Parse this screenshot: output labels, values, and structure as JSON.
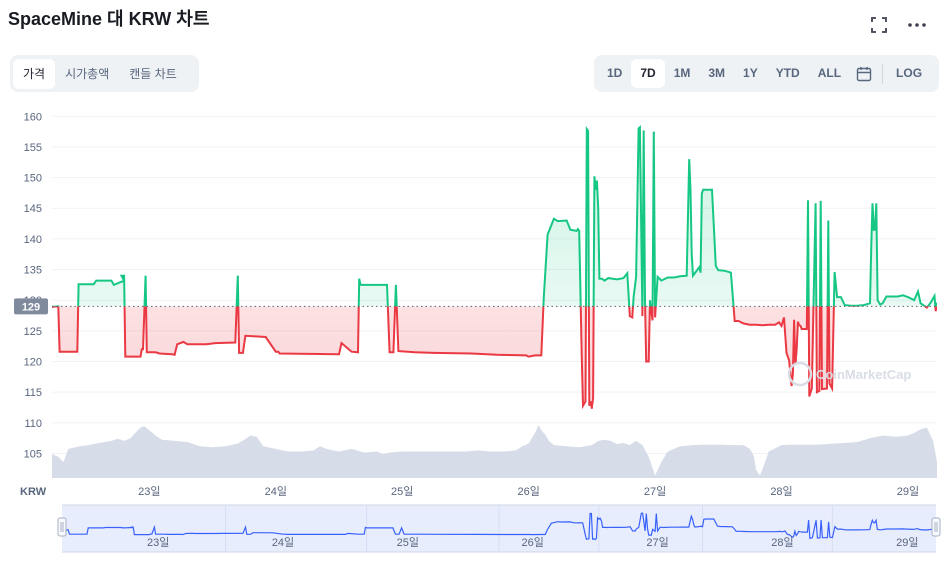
{
  "title": "SpaceMine 대 KRW 차트",
  "tabs": [
    {
      "label": "가격",
      "active": true
    },
    {
      "label": "시가총액",
      "active": false
    },
    {
      "label": "캔들 차트",
      "active": false
    }
  ],
  "ranges": [
    {
      "label": "1D",
      "active": false
    },
    {
      "label": "7D",
      "active": true
    },
    {
      "label": "1M",
      "active": false
    },
    {
      "label": "3M",
      "active": false
    },
    {
      "label": "1Y",
      "active": false
    },
    {
      "label": "YTD",
      "active": false
    },
    {
      "label": "ALL",
      "active": false
    }
  ],
  "log_label": "LOG",
  "icons": {
    "fullscreen": "fullscreen-icon",
    "more": "more-icon",
    "calendar": "calendar-icon"
  },
  "watermark": "CoinMarketCap",
  "chart_data": {
    "type": "line",
    "ylabel": "KRW",
    "ylim": [
      101,
      162
    ],
    "yticks": [
      105,
      110,
      115,
      120,
      125,
      130,
      135,
      140,
      145,
      150,
      155,
      160
    ],
    "baseline": 129,
    "baseline_label": "129",
    "x_ticks": [
      {
        "label": "23일",
        "t": 23
      },
      {
        "label": "24일",
        "t": 24
      },
      {
        "label": "25일",
        "t": 25
      },
      {
        "label": "26일",
        "t": 26
      },
      {
        "label": "27일",
        "t": 27
      },
      {
        "label": "28일",
        "t": 28
      },
      {
        "label": "29일",
        "t": 29
      }
    ],
    "xlim": [
      22.23,
      29.23
    ],
    "grid": true,
    "colors": {
      "up": "#16c784",
      "down": "#ea3943",
      "volume": "#cfd6e4",
      "navigator": "#3861fb"
    },
    "series": [
      {
        "points": [
          [
            22.23,
            128.9
          ],
          [
            22.28,
            129
          ],
          [
            22.29,
            121.6
          ],
          [
            22.43,
            121.6
          ],
          [
            22.44,
            132.6
          ],
          [
            22.56,
            132.6
          ],
          [
            22.58,
            133.2
          ],
          [
            22.7,
            133.2
          ],
          [
            22.72,
            132.5
          ],
          [
            22.8,
            133.2
          ],
          [
            22.78,
            134
          ],
          [
            22.8,
            134
          ],
          [
            22.81,
            120.8
          ],
          [
            22.93,
            120.8
          ],
          [
            22.94,
            122
          ],
          [
            22.95,
            122
          ],
          [
            22.97,
            134
          ],
          [
            22.98,
            121.5
          ],
          [
            23.05,
            121.5
          ],
          [
            23.08,
            121.3
          ],
          [
            23.18,
            121.2
          ],
          [
            23.2,
            121.1
          ],
          [
            23.22,
            122.8
          ],
          [
            23.27,
            123.2
          ],
          [
            23.3,
            122.8
          ],
          [
            23.45,
            122.8
          ],
          [
            23.52,
            123
          ],
          [
            23.68,
            123.1
          ],
          [
            23.7,
            134
          ],
          [
            23.71,
            121.4
          ],
          [
            23.74,
            121.4
          ],
          [
            23.76,
            124.2
          ],
          [
            23.92,
            124
          ],
          [
            24.0,
            121.6
          ],
          [
            24.02,
            121.6
          ],
          [
            24.03,
            121.3
          ],
          [
            24.5,
            121.2
          ],
          [
            24.52,
            123
          ],
          [
            24.6,
            121.6
          ],
          [
            24.65,
            121.5
          ],
          [
            24.66,
            133.5
          ],
          [
            24.67,
            132.5
          ],
          [
            24.88,
            132.5
          ],
          [
            24.9,
            121.5
          ],
          [
            24.93,
            121.5
          ],
          [
            24.95,
            132.5
          ],
          [
            24.97,
            121.7
          ],
          [
            25.1,
            121.5
          ],
          [
            25.25,
            121.4
          ],
          [
            25.55,
            121.3
          ],
          [
            25.75,
            121.1
          ],
          [
            25.98,
            121.0
          ],
          [
            26.0,
            120.8
          ],
          [
            26.05,
            121.0
          ],
          [
            26.1,
            121.0
          ],
          [
            26.12,
            130.5
          ],
          [
            26.15,
            140.7
          ],
          [
            26.2,
            143.3
          ],
          [
            26.23,
            142.9
          ],
          [
            26.3,
            143
          ],
          [
            26.33,
            141.5
          ],
          [
            26.38,
            141.3
          ],
          [
            26.39,
            141.6
          ],
          [
            26.4,
            141.3
          ],
          [
            26.42,
            121.2
          ],
          [
            26.43,
            112.8
          ],
          [
            26.45,
            113.5
          ],
          [
            26.46,
            157.9
          ],
          [
            26.47,
            157.6
          ],
          [
            26.48,
            112.8
          ],
          [
            26.49,
            113.5
          ],
          [
            26.5,
            112.3
          ],
          [
            26.5,
            112.6
          ],
          [
            26.51,
            114
          ],
          [
            26.52,
            150.2
          ],
          [
            26.53,
            148
          ],
          [
            26.54,
            149.5
          ],
          [
            26.55,
            145
          ],
          [
            26.56,
            133.5
          ],
          [
            26.58,
            133.5
          ],
          [
            26.6,
            133.2
          ],
          [
            26.63,
            133.6
          ],
          [
            26.7,
            133.4
          ],
          [
            26.75,
            133.6
          ],
          [
            26.78,
            134.4
          ],
          [
            26.8,
            127.4
          ],
          [
            26.82,
            127.2
          ],
          [
            26.83,
            130.5
          ],
          [
            26.85,
            133.8
          ],
          [
            26.87,
            158
          ],
          [
            26.88,
            158.2
          ],
          [
            26.9,
            127.4
          ],
          [
            26.91,
            157.7
          ],
          [
            26.92,
            130
          ],
          [
            26.93,
            120
          ],
          [
            26.95,
            120
          ],
          [
            26.96,
            130
          ],
          [
            26.98,
            126.7
          ],
          [
            26.99,
            157.5
          ],
          [
            27.0,
            127.2
          ],
          [
            27.02,
            133.8
          ],
          [
            27.05,
            133.2
          ],
          [
            27.1,
            133.7
          ],
          [
            27.15,
            133.7
          ],
          [
            27.2,
            133.9
          ],
          [
            27.25,
            134
          ],
          [
            27.27,
            153
          ],
          [
            27.28,
            148
          ],
          [
            27.29,
            137.6
          ],
          [
            27.3,
            134
          ],
          [
            27.35,
            135.4
          ],
          [
            27.36,
            134.5
          ],
          [
            27.37,
            147.4
          ],
          [
            27.38,
            148
          ],
          [
            27.45,
            148
          ],
          [
            27.48,
            135.6
          ],
          [
            27.5,
            134.9
          ],
          [
            27.55,
            134.8
          ],
          [
            27.6,
            134.5
          ],
          [
            27.63,
            126.6
          ],
          [
            27.66,
            126.6
          ],
          [
            27.7,
            126.2
          ],
          [
            27.75,
            126
          ],
          [
            27.8,
            126
          ],
          [
            27.85,
            125.9
          ],
          [
            27.9,
            126
          ],
          [
            27.95,
            126
          ],
          [
            27.98,
            126.4
          ],
          [
            28.0,
            125.8
          ],
          [
            28.02,
            127.2
          ],
          [
            28.04,
            121.4
          ],
          [
            28.06,
            120.2
          ],
          [
            28.08,
            116
          ],
          [
            28.09,
            118
          ],
          [
            28.1,
            126.8
          ],
          [
            28.11,
            119.5
          ],
          [
            28.12,
            122
          ],
          [
            28.13,
            126.5
          ],
          [
            28.14,
            125.9
          ],
          [
            28.15,
            125.8
          ],
          [
            28.16,
            125.3
          ],
          [
            28.18,
            125.3
          ],
          [
            28.2,
            125.3
          ],
          [
            28.21,
            146.3
          ],
          [
            28.22,
            114.3
          ],
          [
            28.24,
            115.6
          ],
          [
            28.27,
            145.8
          ],
          [
            28.28,
            115
          ],
          [
            28.3,
            115.2
          ],
          [
            28.31,
            146.2
          ],
          [
            28.32,
            115.5
          ],
          [
            28.36,
            115.6
          ],
          [
            28.37,
            143
          ],
          [
            28.38,
            116.4
          ],
          [
            28.4,
            115.6
          ],
          [
            28.42,
            134.6
          ],
          [
            28.44,
            130.5
          ],
          [
            28.47,
            130.5
          ],
          [
            28.5,
            129.2
          ],
          [
            28.55,
            129.1
          ],
          [
            28.6,
            129.1
          ],
          [
            28.65,
            129.2
          ],
          [
            28.7,
            129.5
          ],
          [
            28.71,
            139
          ],
          [
            28.72,
            145.8
          ],
          [
            28.73,
            141.5
          ],
          [
            28.74,
            141.5
          ],
          [
            28.75,
            145.8
          ],
          [
            28.76,
            130
          ],
          [
            28.78,
            129.3
          ],
          [
            28.8,
            129.5
          ],
          [
            28.83,
            130.6
          ],
          [
            28.88,
            130.6
          ],
          [
            28.92,
            130.6
          ],
          [
            28.96,
            130.8
          ],
          [
            29.0,
            130.5
          ],
          [
            29.05,
            130
          ],
          [
            29.08,
            131.4
          ],
          [
            29.1,
            129.5
          ],
          [
            29.15,
            128.8
          ],
          [
            29.18,
            129.6
          ],
          [
            29.21,
            130.7
          ],
          [
            29.22,
            128.2
          ],
          [
            29.23,
            129.6
          ]
        ]
      }
    ],
    "volume_profile": [
      [
        22.23,
        0.45
      ],
      [
        22.28,
        0.4
      ],
      [
        22.32,
        0.3
      ],
      [
        22.36,
        0.55
      ],
      [
        22.45,
        0.6
      ],
      [
        22.52,
        0.62
      ],
      [
        22.6,
        0.66
      ],
      [
        22.65,
        0.68
      ],
      [
        22.7,
        0.7
      ],
      [
        22.75,
        0.74
      ],
      [
        22.8,
        0.7
      ],
      [
        22.85,
        0.75
      ],
      [
        22.9,
        0.88
      ],
      [
        22.93,
        0.95
      ],
      [
        22.96,
        0.98
      ],
      [
        23.0,
        0.9
      ],
      [
        23.05,
        0.8
      ],
      [
        23.1,
        0.72
      ],
      [
        23.2,
        0.7
      ],
      [
        23.3,
        0.68
      ],
      [
        23.4,
        0.6
      ],
      [
        23.5,
        0.58
      ],
      [
        23.6,
        0.6
      ],
      [
        23.7,
        0.65
      ],
      [
        23.75,
        0.72
      ],
      [
        23.8,
        0.8
      ],
      [
        23.85,
        0.78
      ],
      [
        23.9,
        0.6
      ],
      [
        24.0,
        0.55
      ],
      [
        24.05,
        0.52
      ],
      [
        24.1,
        0.5
      ],
      [
        24.2,
        0.5
      ],
      [
        24.3,
        0.52
      ],
      [
        24.35,
        0.6
      ],
      [
        24.4,
        0.55
      ],
      [
        24.5,
        0.5
      ],
      [
        24.6,
        0.55
      ],
      [
        24.7,
        0.48
      ],
      [
        24.8,
        0.5
      ],
      [
        24.85,
        0.45
      ],
      [
        24.9,
        0.48
      ],
      [
        25.0,
        0.5
      ],
      [
        25.1,
        0.5
      ],
      [
        25.2,
        0.5
      ],
      [
        25.3,
        0.5
      ],
      [
        25.4,
        0.5
      ],
      [
        25.5,
        0.5
      ],
      [
        25.6,
        0.52
      ],
      [
        25.7,
        0.5
      ],
      [
        25.8,
        0.5
      ],
      [
        25.9,
        0.52
      ],
      [
        25.95,
        0.6
      ],
      [
        26.0,
        0.65
      ],
      [
        26.05,
        0.85
      ],
      [
        26.08,
        1.0
      ],
      [
        26.1,
        0.9
      ],
      [
        26.13,
        0.82
      ],
      [
        26.16,
        0.7
      ],
      [
        26.2,
        0.62
      ],
      [
        26.3,
        0.6
      ],
      [
        26.4,
        0.58
      ],
      [
        26.45,
        0.6
      ],
      [
        26.5,
        0.62
      ],
      [
        26.55,
        0.7
      ],
      [
        26.6,
        0.72
      ],
      [
        26.65,
        0.7
      ],
      [
        26.7,
        0.64
      ],
      [
        26.75,
        0.66
      ],
      [
        26.8,
        0.62
      ],
      [
        26.85,
        0.7
      ],
      [
        26.9,
        0.62
      ],
      [
        26.95,
        0.4
      ],
      [
        27.0,
        0.05
      ],
      [
        27.05,
        0.3
      ],
      [
        27.1,
        0.5
      ],
      [
        27.2,
        0.6
      ],
      [
        27.3,
        0.62
      ],
      [
        27.4,
        0.63
      ],
      [
        27.5,
        0.63
      ],
      [
        27.6,
        0.62
      ],
      [
        27.7,
        0.62
      ],
      [
        27.75,
        0.55
      ],
      [
        27.78,
        0.42
      ],
      [
        27.8,
        0.15
      ],
      [
        27.83,
        0.05
      ],
      [
        27.87,
        0.3
      ],
      [
        27.9,
        0.5
      ],
      [
        28.0,
        0.62
      ],
      [
        28.1,
        0.63
      ],
      [
        28.2,
        0.63
      ],
      [
        28.3,
        0.63
      ],
      [
        28.4,
        0.65
      ],
      [
        28.5,
        0.66
      ],
      [
        28.6,
        0.68
      ],
      [
        28.7,
        0.75
      ],
      [
        28.8,
        0.8
      ],
      [
        28.9,
        0.78
      ],
      [
        29.0,
        0.8
      ],
      [
        29.05,
        0.85
      ],
      [
        29.1,
        0.92
      ],
      [
        29.15,
        0.95
      ],
      [
        29.2,
        0.7
      ],
      [
        29.23,
        0.3
      ]
    ]
  }
}
